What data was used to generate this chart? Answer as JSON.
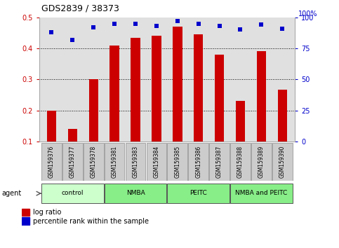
{
  "title": "GDS2839 / 38373",
  "categories": [
    "GSM159376",
    "GSM159377",
    "GSM159378",
    "GSM159381",
    "GSM159383",
    "GSM159384",
    "GSM159385",
    "GSM159386",
    "GSM159387",
    "GSM159388",
    "GSM159389",
    "GSM159390"
  ],
  "log_ratio": [
    0.2,
    0.14,
    0.3,
    0.41,
    0.435,
    0.44,
    0.47,
    0.445,
    0.38,
    0.23,
    0.39,
    0.267
  ],
  "percentile_rank": [
    88,
    82,
    92,
    95,
    95,
    93,
    97,
    95,
    93,
    90,
    94,
    91
  ],
  "bar_color": "#cc0000",
  "dot_color": "#0000cc",
  "ylim_left": [
    0.1,
    0.5
  ],
  "ylim_right": [
    0,
    100
  ],
  "yticks_left": [
    0.1,
    0.2,
    0.3,
    0.4,
    0.5
  ],
  "yticks_right": [
    0,
    25,
    50,
    75,
    100
  ],
  "ylabel_left_color": "#cc0000",
  "ylabel_right_color": "#0000cc",
  "groups": [
    {
      "label": "control",
      "start": 0,
      "end": 3,
      "color": "#ccffcc"
    },
    {
      "label": "NMBA",
      "start": 3,
      "end": 6,
      "color": "#66dd66"
    },
    {
      "label": "PEITC",
      "start": 6,
      "end": 9,
      "color": "#66dd66"
    },
    {
      "label": "NMBA and PEITC",
      "start": 9,
      "end": 12,
      "color": "#66dd66"
    }
  ],
  "agent_label": "agent",
  "legend_bar_label": "log ratio",
  "legend_dot_label": "percentile rank within the sample",
  "title_fontsize": 9,
  "bar_width": 0.45,
  "plot_bg_color": "#e0e0e0"
}
